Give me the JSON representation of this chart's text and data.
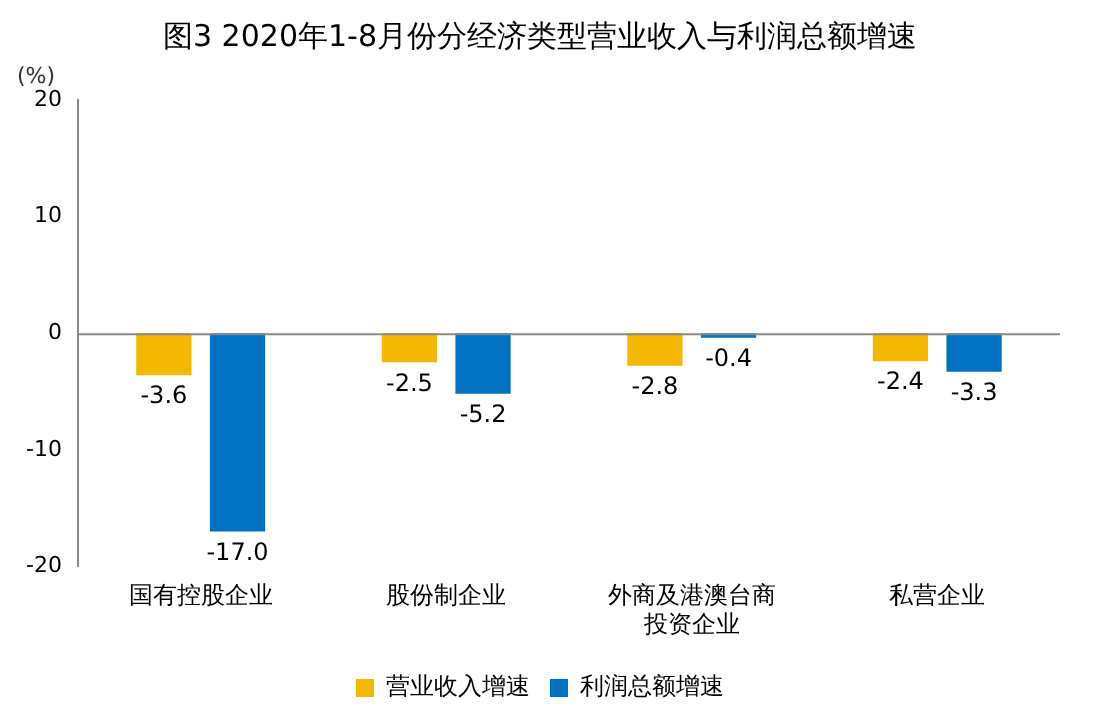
{
  "chart_data": {
    "type": "bar",
    "title": "图3 2020年1-8月份分经济类型营业收入与利润总额增速",
    "ylabel": "(%)",
    "categories": [
      "国有控股企业",
      "股份制企业",
      "外商及港澳台商投资企业",
      "私营企业"
    ],
    "series": [
      {
        "name": "营业收入增速",
        "color": "#f5b800",
        "values": [
          -3.6,
          -2.5,
          -2.8,
          -2.4
        ],
        "value_labels": [
          "-3.6",
          "-2.5",
          "-2.8",
          "-2.4"
        ]
      },
      {
        "name": "利润总额增速",
        "color": "#0070c0",
        "values": [
          -17.0,
          -5.2,
          -0.4,
          -3.3
        ],
        "value_labels": [
          "-17.0",
          "-5.2",
          "-0.4",
          "-3.3"
        ]
      }
    ],
    "ylim": [
      -20,
      20
    ],
    "yticks": [
      -20,
      -10,
      0,
      10,
      20
    ],
    "ref_lines": [
      {
        "axis": "y",
        "value": 0,
        "color": "#888888"
      }
    ],
    "legend": "bottom"
  }
}
